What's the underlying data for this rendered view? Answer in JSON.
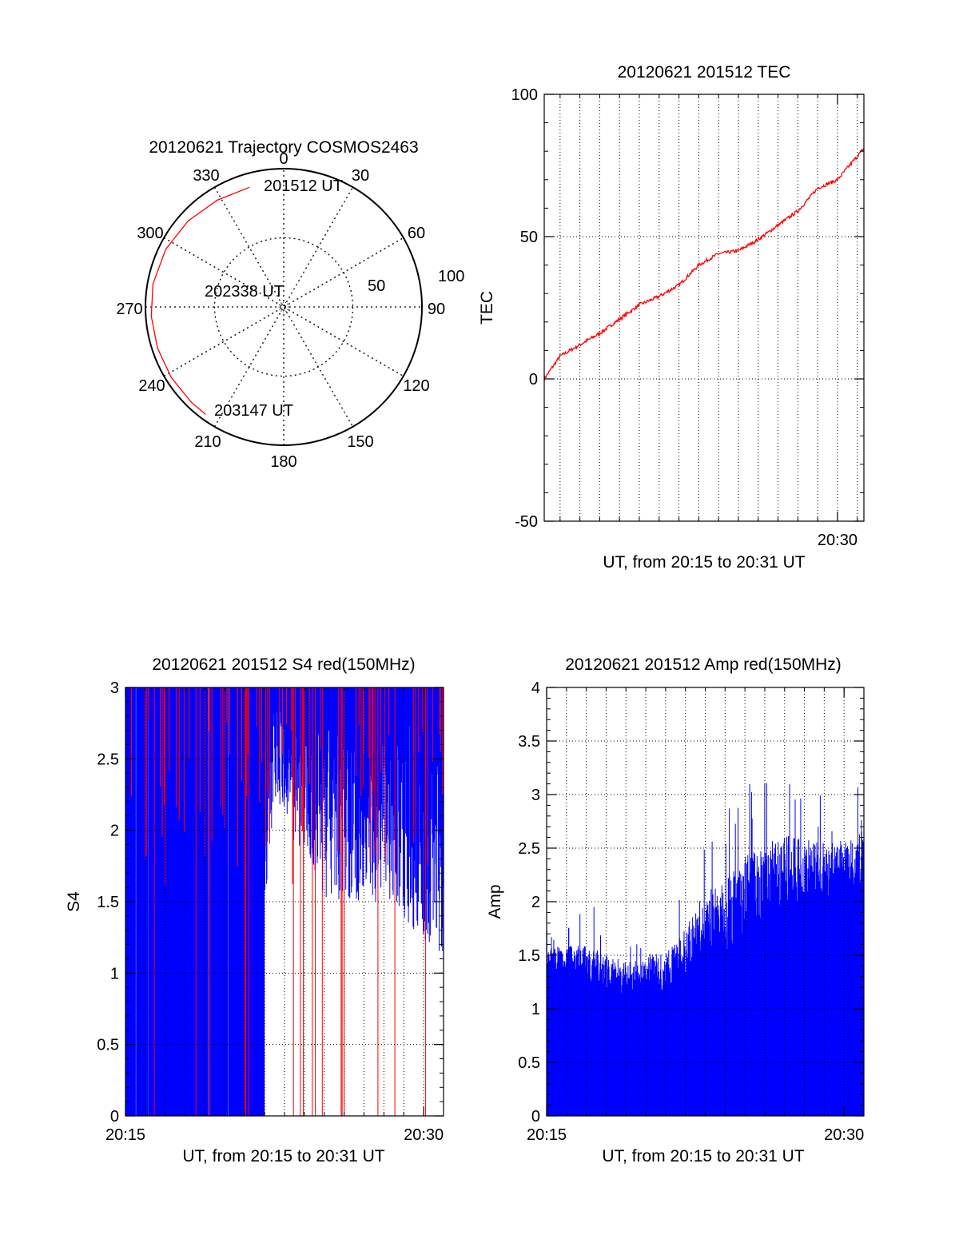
{
  "colors": {
    "red": "#ff0000",
    "blue": "#0000ff",
    "axis": "#000000",
    "grid": "#000000"
  },
  "polar": {
    "title": "20120621 Trajectory COSMOS2463",
    "azimuth_labels": [
      {
        "az": 0,
        "text": "0"
      },
      {
        "az": 30,
        "text": "30"
      },
      {
        "az": 60,
        "text": "60"
      },
      {
        "az": 90,
        "text": "90"
      },
      {
        "az": 120,
        "text": "120"
      },
      {
        "az": 150,
        "text": "150"
      },
      {
        "az": 180,
        "text": "180"
      },
      {
        "az": 210,
        "text": "210"
      },
      {
        "az": 240,
        "text": "240"
      },
      {
        "az": 270,
        "text": "270"
      },
      {
        "az": 300,
        "text": "300"
      },
      {
        "az": 330,
        "text": "330"
      }
    ],
    "ring_labels": [
      "50",
      "100"
    ],
    "time_labels": [
      "201512 UT",
      "202338 UT",
      "203147 UT"
    ],
    "trajectory": [
      {
        "az": 344,
        "r": 90
      },
      {
        "az": 328,
        "r": 91
      },
      {
        "az": 312,
        "r": 93
      },
      {
        "az": 296,
        "r": 95
      },
      {
        "az": 280,
        "r": 96
      },
      {
        "az": 266,
        "r": 96
      },
      {
        "az": 252,
        "r": 96
      },
      {
        "az": 238,
        "r": 96
      },
      {
        "az": 224,
        "r": 96
      },
      {
        "az": 216,
        "r": 96
      }
    ]
  },
  "chart_data": [
    {
      "type": "line",
      "title": "20120621 201512 TEC",
      "xlabel": "UT, from 20:15 to 20:31 UT",
      "ylabel": "TEC",
      "xlim": [
        "20:15:12",
        "20:31:20"
      ],
      "ylim": [
        -50,
        100
      ],
      "yticks": [
        "-50",
        "0",
        "50",
        "100"
      ],
      "xticks": [
        {
          "t": "20:30",
          "label": "20:30"
        }
      ],
      "grid": true,
      "series": [
        {
          "color": "red",
          "x": [
            "20:15:12",
            "20:16:00",
            "20:17:00",
            "20:18:00",
            "20:19:00",
            "20:20:00",
            "20:21:00",
            "20:22:00",
            "20:23:00",
            "20:24:00",
            "20:25:00",
            "20:26:00",
            "20:27:00",
            "20:28:00",
            "20:29:00",
            "20:30:00",
            "20:31:20"
          ],
          "y": [
            0,
            8,
            12,
            16,
            21,
            26,
            29,
            33,
            40,
            44,
            45,
            49,
            54,
            59,
            67,
            70,
            81
          ]
        }
      ]
    },
    {
      "type": "bar",
      "title": "20120621 201512 S4 red(150MHz)",
      "xlabel": "UT, from 20:15 to 20:31 UT",
      "ylabel": "S4",
      "xlim": [
        "20:15:00",
        "20:31:00"
      ],
      "ylim": [
        0,
        3
      ],
      "yticks": [
        "0",
        "0.5",
        "1",
        "1.5",
        "2",
        "2.5",
        "3"
      ],
      "xticks": [
        {
          "t": "20:15",
          "label": "20:15"
        },
        {
          "t": "20:30",
          "label": "20:30"
        }
      ],
      "grid": true,
      "series": [
        {
          "color": "blue",
          "profile_x": [
            "20:15:00",
            "20:21:00",
            "20:22:30",
            "20:25:00",
            "20:28:00",
            "20:31:00"
          ],
          "profile_min": [
            0,
            0,
            2.2,
            1.5,
            1.5,
            1.1
          ]
        },
        {
          "color": "red",
          "profile_x": [
            "20:15:00",
            "20:21:00",
            "20:22:30",
            "20:25:00",
            "20:28:00",
            "20:31:00"
          ],
          "profile_min": [
            0,
            0,
            0,
            0,
            0,
            0
          ]
        }
      ]
    },
    {
      "type": "bar",
      "title": "20120621 201512 Amp red(150MHz)",
      "xlabel": "UT, from 20:15 to 20:31 UT",
      "ylabel": "Amp",
      "xlim": [
        "20:15:00",
        "20:31:00"
      ],
      "ylim": [
        0,
        4
      ],
      "yticks": [
        "0",
        "0.5",
        "1",
        "1.5",
        "2",
        "2.5",
        "3",
        "3.5",
        "4"
      ],
      "xticks": [
        {
          "t": "20:15",
          "label": "20:15"
        },
        {
          "t": "20:30",
          "label": "20:30"
        }
      ],
      "grid": true,
      "series": [
        {
          "color": "blue",
          "x": [
            "20:15:00",
            "20:17:00",
            "20:19:00",
            "20:21:00",
            "20:23:00",
            "20:25:00",
            "20:27:00",
            "20:29:00",
            "20:31:00"
          ],
          "floor": [
            1.3,
            1.1,
            1.0,
            1.1,
            1.3,
            1.5,
            1.8,
            1.9,
            2.0
          ],
          "peak": [
            1.8,
            2.0,
            1.8,
            1.9,
            2.6,
            3.2,
            3.3,
            3.1,
            3.1
          ]
        }
      ]
    }
  ]
}
